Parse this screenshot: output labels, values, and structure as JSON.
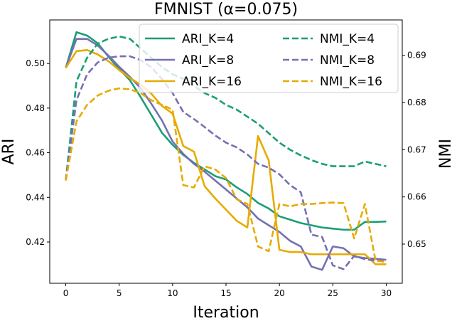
{
  "chart_data": {
    "type": "line",
    "title": "FMNIST (α=0.075)",
    "xlabel": "Iteration",
    "ylabel_left": "ARI",
    "ylabel_right": "NMI",
    "xlim": [
      -1.5,
      31.5
    ],
    "ylim_left": [
      0.4015,
      0.5195
    ],
    "ylim_right": [
      0.6417,
      0.6975
    ],
    "x_ticks": [
      0,
      5,
      10,
      15,
      20,
      25,
      30
    ],
    "y_ticks_left": [
      "0.42",
      "0.44",
      "0.46",
      "0.48",
      "0.50"
    ],
    "y_ticks_right": [
      "0.65",
      "0.66",
      "0.67",
      "0.68",
      "0.69"
    ],
    "grid": false,
    "legend_position": "top-right",
    "legend_columns": 2,
    "x": [
      0,
      1,
      2,
      3,
      4,
      5,
      6,
      7,
      8,
      9,
      10,
      11,
      12,
      13,
      14,
      15,
      16,
      17,
      18,
      19,
      20,
      21,
      22,
      23,
      24,
      25,
      26,
      27,
      28,
      29,
      30
    ],
    "series": [
      {
        "name": "ARI_K=4",
        "axis": "left",
        "color": "#1b9e77",
        "dash": "solid",
        "values": [
          0.498,
          0.514,
          0.5125,
          0.509,
          0.503,
          0.4975,
          0.4925,
          0.485,
          0.477,
          0.469,
          0.4635,
          0.459,
          0.4555,
          0.4525,
          0.4495,
          0.448,
          0.4445,
          0.4415,
          0.4375,
          0.435,
          0.4315,
          0.43,
          0.4285,
          0.4275,
          0.4265,
          0.426,
          0.4255,
          0.4255,
          0.429,
          0.429,
          0.4292
        ]
      },
      {
        "name": "ARI_K=8",
        "axis": "left",
        "color": "#7570b3",
        "dash": "solid",
        "values": [
          0.498,
          0.511,
          0.511,
          0.508,
          0.5035,
          0.4985,
          0.494,
          0.489,
          0.482,
          0.4745,
          0.465,
          0.4595,
          0.455,
          0.4515,
          0.4475,
          0.4435,
          0.4395,
          0.4355,
          0.4305,
          0.4275,
          0.4245,
          0.4205,
          0.418,
          0.409,
          0.4075,
          0.418,
          0.4172,
          0.4135,
          0.4128,
          0.4125,
          0.412
        ]
      },
      {
        "name": "ARI_K=16",
        "axis": "left",
        "color": "#e6ab02",
        "dash": "solid",
        "values": [
          0.498,
          0.5055,
          0.506,
          0.504,
          0.501,
          0.497,
          0.4935,
          0.4905,
          0.4865,
          0.481,
          0.4775,
          0.463,
          0.4605,
          0.445,
          0.4395,
          0.4345,
          0.4295,
          0.4265,
          0.4675,
          0.4565,
          0.4165,
          0.4155,
          0.4155,
          0.4145,
          0.4145,
          0.4145,
          0.4145,
          0.4145,
          0.4145,
          0.41,
          0.41
        ]
      },
      {
        "name": "NMI_K=4",
        "axis": "right",
        "color": "#1b9e77",
        "dash": "dashed",
        "values": [
          0.6635,
          0.6845,
          0.6895,
          0.6925,
          0.6935,
          0.694,
          0.6935,
          0.6915,
          0.6895,
          0.6875,
          0.686,
          0.685,
          0.6835,
          0.682,
          0.681,
          0.6795,
          0.6785,
          0.677,
          0.6755,
          0.6735,
          0.6715,
          0.67,
          0.6688,
          0.6678,
          0.667,
          0.6665,
          0.6665,
          0.6665,
          0.6675,
          0.667,
          0.6665
        ]
      },
      {
        "name": "NMI_K=8",
        "axis": "right",
        "color": "#7570b3",
        "dash": "dashed",
        "values": [
          0.6635,
          0.6805,
          0.686,
          0.6885,
          0.6895,
          0.6898,
          0.6898,
          0.689,
          0.6875,
          0.685,
          0.682,
          0.678,
          0.6765,
          0.6748,
          0.673,
          0.6715,
          0.6705,
          0.669,
          0.667,
          0.6662,
          0.6648,
          0.6625,
          0.661,
          0.652,
          0.6515,
          0.6455,
          0.6447,
          0.6475,
          0.6468,
          0.6465,
          0.6465
        ]
      },
      {
        "name": "NMI_K=16",
        "axis": "right",
        "color": "#e6ab02",
        "dash": "dashed",
        "values": [
          0.6635,
          0.676,
          0.6795,
          0.6815,
          0.6825,
          0.683,
          0.6828,
          0.682,
          0.6805,
          0.6795,
          0.6785,
          0.6625,
          0.662,
          0.6665,
          0.6658,
          0.664,
          0.6595,
          0.6585,
          0.6495,
          0.6485,
          0.6585,
          0.658,
          0.6585,
          0.6585,
          0.6587,
          0.6588,
          0.6587,
          0.6512,
          0.6585,
          0.6465,
          0.6462
        ]
      }
    ]
  }
}
